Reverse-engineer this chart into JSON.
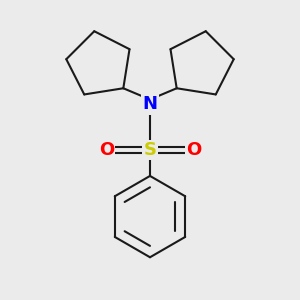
{
  "background_color": "#ebebeb",
  "bond_color": "#1a1a1a",
  "N_color": "#0000ff",
  "S_color": "#cccc00",
  "O_color": "#ff0000",
  "line_width": 1.5,
  "fig_size": [
    3.0,
    3.0
  ],
  "dpi": 100,
  "xlim": [
    -1.8,
    1.8
  ],
  "ylim": [
    -2.2,
    2.0
  ]
}
